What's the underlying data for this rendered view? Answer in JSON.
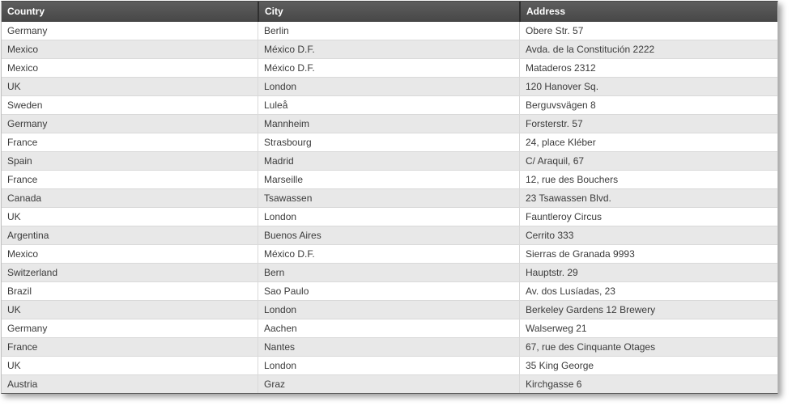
{
  "grid": {
    "columns": [
      {
        "key": "country",
        "label": "Country"
      },
      {
        "key": "city",
        "label": "City"
      },
      {
        "key": "address",
        "label": "Address"
      }
    ],
    "rows": [
      {
        "country": "Germany",
        "city": "Berlin",
        "address": "Obere Str. 57"
      },
      {
        "country": "Mexico",
        "city": "México D.F.",
        "address": "Avda. de la Constitución 2222"
      },
      {
        "country": "Mexico",
        "city": "México D.F.",
        "address": "Mataderos 2312"
      },
      {
        "country": "UK",
        "city": "London",
        "address": "120 Hanover Sq."
      },
      {
        "country": "Sweden",
        "city": "Luleå",
        "address": "Berguvsvägen 8"
      },
      {
        "country": "Germany",
        "city": "Mannheim",
        "address": "Forsterstr. 57"
      },
      {
        "country": "France",
        "city": "Strasbourg",
        "address": "24, place Kléber"
      },
      {
        "country": "Spain",
        "city": "Madrid",
        "address": "C/ Araquil, 67"
      },
      {
        "country": "France",
        "city": "Marseille",
        "address": "12, rue des Bouchers"
      },
      {
        "country": "Canada",
        "city": "Tsawassen",
        "address": "23 Tsawassen Blvd."
      },
      {
        "country": "UK",
        "city": "London",
        "address": "Fauntleroy Circus"
      },
      {
        "country": "Argentina",
        "city": "Buenos Aires",
        "address": "Cerrito 333"
      },
      {
        "country": "Mexico",
        "city": "México D.F.",
        "address": "Sierras de Granada 9993"
      },
      {
        "country": "Switzerland",
        "city": "Bern",
        "address": "Hauptstr. 29"
      },
      {
        "country": "Brazil",
        "city": "Sao Paulo",
        "address": "Av. dos Lusíadas, 23"
      },
      {
        "country": "UK",
        "city": "London",
        "address": "Berkeley Gardens 12 Brewery"
      },
      {
        "country": "Germany",
        "city": "Aachen",
        "address": "Walserweg 21"
      },
      {
        "country": "France",
        "city": "Nantes",
        "address": "67, rue des Cinquante Otages"
      },
      {
        "country": "UK",
        "city": "London",
        "address": "35 King George"
      },
      {
        "country": "Austria",
        "city": "Graz",
        "address": "Kirchgasse 6"
      }
    ],
    "colors": {
      "header_gradient_top": "#5d5d5d",
      "header_gradient_bottom": "#474747",
      "header_text": "#ffffff",
      "header_separator": "#2f2f2f",
      "row_background": "#ffffff",
      "row_alt_background": "#e8e8e8",
      "grid_line": "#d9d9d9",
      "body_text": "#3b3b3b"
    }
  }
}
